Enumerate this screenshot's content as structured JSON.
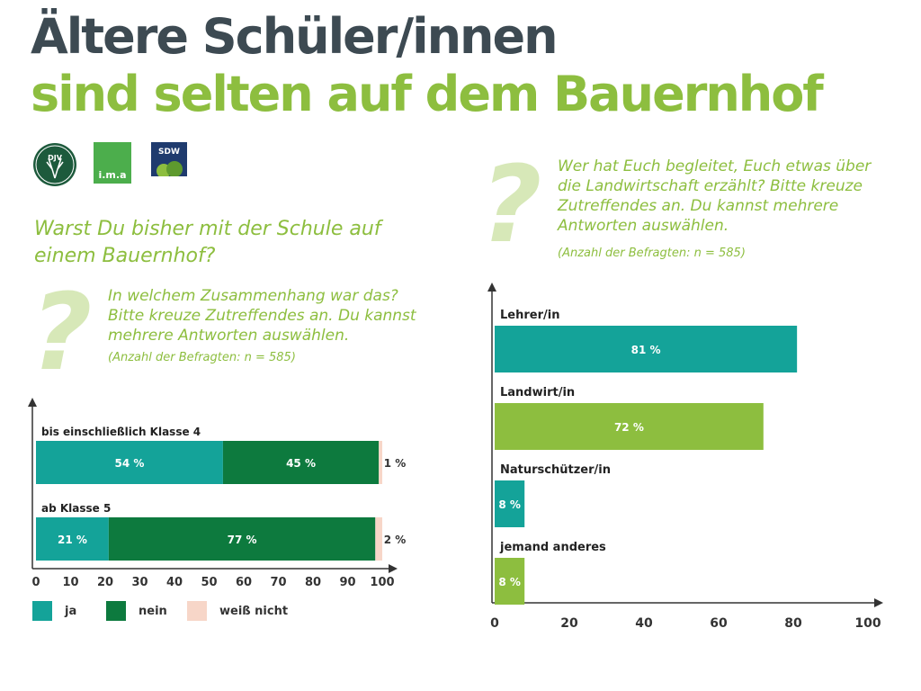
{
  "title": {
    "line1": "Ältere Schüler/innen",
    "line2": "sind selten auf dem Bauernhof"
  },
  "logos": {
    "djv": "DJV",
    "ima": "i.m.a",
    "sdw": "SDW"
  },
  "left": {
    "question_mark": "?",
    "question": "Warst Du bisher mit der Schule auf einem Bauernhof?",
    "sub_question": "In welchem Zusammenhang war das? Bitte kreuze Zutreffendes an. Du kannst mehrere Antworten auswählen.",
    "note": "(Anzahl der Befragten: n = 585)"
  },
  "right": {
    "question_mark": "?",
    "question": "Wer hat Euch begleitet, Euch etwas über die Landwirtschaft erzählt? Bitte kreuze Zutreffendes an. Du kannst mehrere Antworten auswählen.",
    "note": "(Anzahl der Befragten: n = 585)"
  },
  "colors": {
    "teal": "#14a399",
    "dark_green": "#0d7a3e",
    "light_green": "#8dbe3f",
    "peach": "#f7d6c8",
    "title_gray": "#3d4a52"
  },
  "chart_data": [
    {
      "type": "bar",
      "orientation": "horizontal",
      "stacked": true,
      "categories": [
        "bis einschließlich Klasse 4",
        "ab Klasse 5"
      ],
      "series": [
        {
          "name": "ja",
          "values": [
            54,
            21
          ],
          "labels": [
            "54 %",
            "21 %"
          ],
          "color": "#14a399"
        },
        {
          "name": "nein",
          "values": [
            45,
            77
          ],
          "labels": [
            "45 %",
            "77 %"
          ],
          "color": "#0d7a3e"
        },
        {
          "name": "weiß nicht",
          "values": [
            1,
            2
          ],
          "labels": [
            "1 %",
            "2 %"
          ],
          "color": "#f7d6c8"
        }
      ],
      "xlim": [
        0,
        100
      ],
      "xticks": [
        "0",
        "10",
        "20",
        "30",
        "40",
        "50",
        "60",
        "70",
        "80",
        "90",
        "100"
      ],
      "legend_position": "bottom-left"
    },
    {
      "type": "bar",
      "orientation": "horizontal",
      "categories": [
        "Lehrer/in",
        "Landwirt/in",
        "Naturschützer/in",
        "jemand anderes"
      ],
      "values": [
        81,
        72,
        8,
        8
      ],
      "labels": [
        "81 %",
        "72 %",
        "8 %",
        "8 %"
      ],
      "colors": [
        "#14a399",
        "#8dbe3f",
        "#14a399",
        "#8dbe3f"
      ],
      "xlim": [
        0,
        100
      ],
      "xticks": [
        "0",
        "20",
        "40",
        "60",
        "80",
        "100"
      ]
    }
  ]
}
